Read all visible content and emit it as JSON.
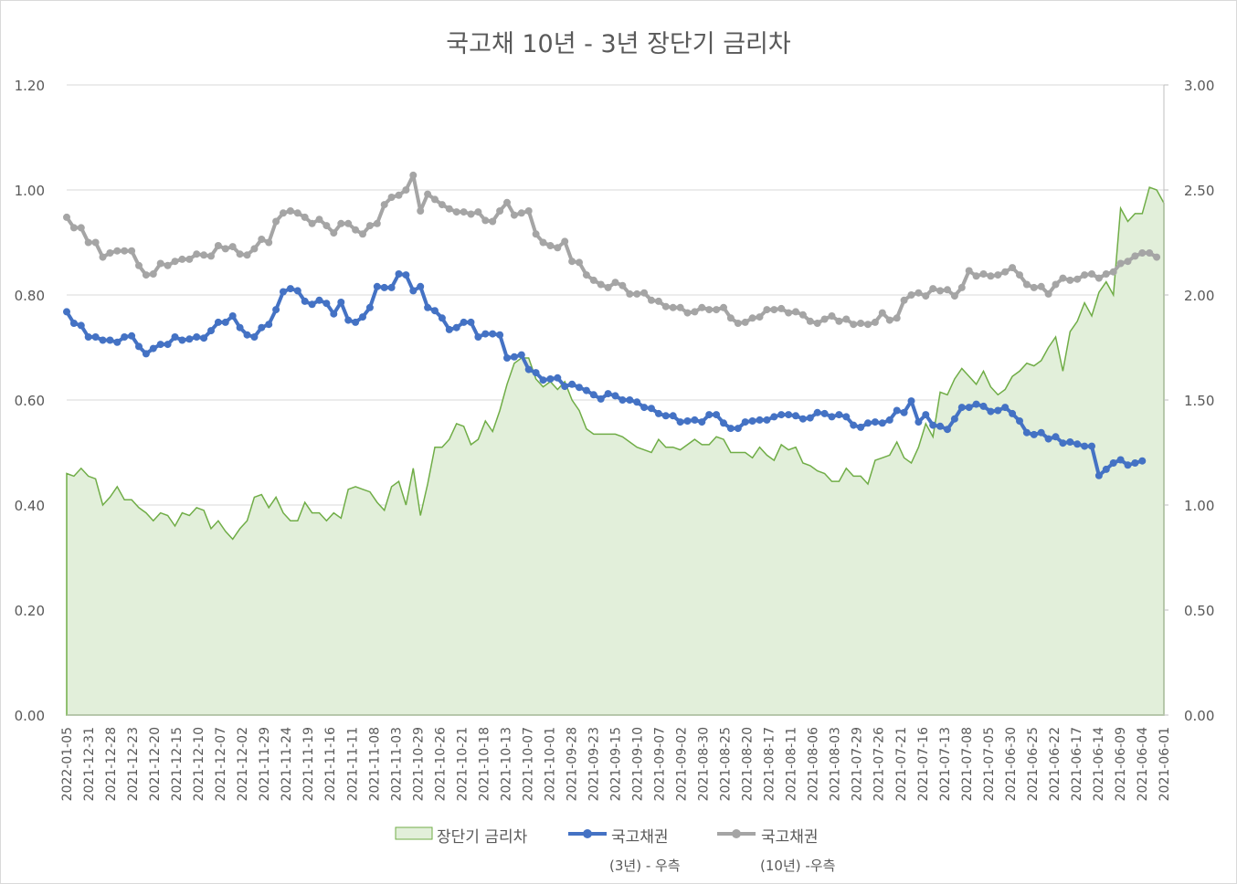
{
  "chart_data": {
    "type": "line",
    "title": "국고채 10년 - 3년 장단기 금리차",
    "left_axis": {
      "min": 0,
      "max": 1.2,
      "ticks": [
        "0.00",
        "0.20",
        "0.40",
        "0.60",
        "0.80",
        "1.00",
        "1.20"
      ]
    },
    "right_axis": {
      "min": 0,
      "max": 3,
      "ticks": [
        "0.00",
        "0.50",
        "1.00",
        "1.50",
        "2.00",
        "2.50",
        "3.00"
      ]
    },
    "x_tick_labels": [
      "2022-01-05",
      "2021-12-31",
      "2021-12-28",
      "2021-12-23",
      "2021-12-20",
      "2021-12-15",
      "2021-12-10",
      "2021-12-07",
      "2021-12-02",
      "2021-11-29",
      "2021-11-24",
      "2021-11-19",
      "2021-11-16",
      "2021-11-11",
      "2021-11-08",
      "2021-11-03",
      "2021-10-29",
      "2021-10-26",
      "2021-10-21",
      "2021-10-18",
      "2021-10-13",
      "2021-10-07",
      "2021-10-01",
      "2021-09-28",
      "2021-09-23",
      "2021-09-15",
      "2021-09-10",
      "2021-09-07",
      "2021-09-02",
      "2021-08-30",
      "2021-08-25",
      "2021-08-20",
      "2021-08-17",
      "2021-08-11",
      "2021-08-06",
      "2021-08-03",
      "2021-07-29",
      "2021-07-26",
      "2021-07-21",
      "2021-07-16",
      "2021-07-13",
      "2021-07-08",
      "2021-07-05",
      "2021-06-30",
      "2021-06-25",
      "2021-06-22",
      "2021-06-17",
      "2021-06-14",
      "2021-06-09",
      "2021-06-04",
      "2021-06-01"
    ],
    "grid": "horizontal",
    "legend_position": "bottom",
    "series": [
      {
        "name": "장단기 금리차",
        "type": "area",
        "axis": "left",
        "color": "#70ad47",
        "fill": "#e2efda",
        "values": [
          0.46,
          0.455,
          0.47,
          0.455,
          0.45,
          0.4,
          0.415,
          0.435,
          0.41,
          0.41,
          0.395,
          0.385,
          0.37,
          0.385,
          0.38,
          0.36,
          0.385,
          0.38,
          0.395,
          0.39,
          0.355,
          0.37,
          0.35,
          0.335,
          0.355,
          0.37,
          0.415,
          0.42,
          0.395,
          0.415,
          0.385,
          0.37,
          0.37,
          0.405,
          0.385,
          0.385,
          0.37,
          0.385,
          0.375,
          0.43,
          0.435,
          0.43,
          0.425,
          0.405,
          0.39,
          0.435,
          0.445,
          0.4,
          0.47,
          0.38,
          0.44,
          0.51,
          0.51,
          0.525,
          0.555,
          0.55,
          0.515,
          0.525,
          0.56,
          0.54,
          0.58,
          0.63,
          0.67,
          0.68,
          0.68,
          0.64,
          0.625,
          0.635,
          0.62,
          0.635,
          0.6,
          0.58,
          0.545,
          0.535,
          0.535,
          0.535,
          0.535,
          0.53,
          0.52,
          0.51,
          0.505,
          0.5,
          0.525,
          0.51,
          0.51,
          0.505,
          0.515,
          0.525,
          0.515,
          0.515,
          0.53,
          0.525,
          0.5,
          0.5,
          0.5,
          0.49,
          0.51,
          0.495,
          0.485,
          0.515,
          0.505,
          0.51,
          0.48,
          0.475,
          0.465,
          0.46,
          0.445,
          0.445,
          0.47,
          0.455,
          0.455,
          0.44,
          0.485,
          0.49,
          0.495,
          0.52,
          0.49,
          0.48,
          0.51,
          0.555,
          0.53,
          0.615,
          0.61,
          0.64,
          0.66,
          0.645,
          0.63,
          0.655,
          0.625,
          0.61,
          0.62,
          0.645,
          0.655,
          0.67,
          0.665,
          0.675,
          0.7,
          0.72,
          0.655,
          0.73,
          0.75,
          0.785,
          0.76,
          0.805,
          0.825,
          0.8,
          0.965,
          0.94,
          0.955,
          0.955,
          1.005,
          1.0,
          0.975
        ]
      },
      {
        "name": "국고채권",
        "name_sub": "(3년) - 우측",
        "type": "line",
        "axis": "right",
        "color": "#4472c4",
        "values": [
          1.92,
          1.865,
          1.855,
          1.8,
          1.8,
          1.785,
          1.785,
          1.775,
          1.8,
          1.805,
          1.755,
          1.72,
          1.745,
          1.765,
          1.765,
          1.8,
          1.785,
          1.79,
          1.8,
          1.795,
          1.83,
          1.87,
          1.87,
          1.9,
          1.845,
          1.81,
          1.8,
          1.845,
          1.86,
          1.93,
          2.015,
          2.03,
          2.02,
          1.97,
          1.955,
          1.975,
          1.96,
          1.91,
          1.965,
          1.88,
          1.87,
          1.895,
          1.94,
          2.04,
          2.035,
          2.035,
          2.1,
          2.095,
          2.02,
          2.04,
          1.94,
          1.925,
          1.89,
          1.835,
          1.845,
          1.87,
          1.87,
          1.8,
          1.815,
          1.815,
          1.81,
          1.7,
          1.705,
          1.715,
          1.645,
          1.63,
          1.595,
          1.6,
          1.605,
          1.565,
          1.575,
          1.56,
          1.545,
          1.525,
          1.505,
          1.53,
          1.52,
          1.5,
          1.5,
          1.49,
          1.465,
          1.46,
          1.435,
          1.425,
          1.425,
          1.395,
          1.4,
          1.405,
          1.395,
          1.43,
          1.43,
          1.39,
          1.365,
          1.365,
          1.395,
          1.4,
          1.405,
          1.405,
          1.42,
          1.43,
          1.43,
          1.425,
          1.41,
          1.415,
          1.44,
          1.435,
          1.42,
          1.43,
          1.42,
          1.38,
          1.37,
          1.39,
          1.395,
          1.39,
          1.405,
          1.45,
          1.44,
          1.495,
          1.395,
          1.43,
          1.38,
          1.375,
          1.36,
          1.41,
          1.465,
          1.465,
          1.48,
          1.47,
          1.445,
          1.45,
          1.465,
          1.435,
          1.4,
          1.345,
          1.335,
          1.345,
          1.315,
          1.325,
          1.295,
          1.3,
          1.29,
          1.28,
          1.28,
          1.14,
          1.17,
          1.2,
          1.215,
          1.19,
          1.2,
          1.21
        ]
      },
      {
        "name": "국고채권",
        "name_sub": "(10년) -우측",
        "type": "line",
        "axis": "right",
        "color": "#a5a5a5",
        "values": [
          2.37,
          2.32,
          2.32,
          2.25,
          2.25,
          2.18,
          2.2,
          2.21,
          2.21,
          2.21,
          2.14,
          2.095,
          2.1,
          2.15,
          2.14,
          2.16,
          2.17,
          2.17,
          2.195,
          2.19,
          2.185,
          2.235,
          2.22,
          2.23,
          2.195,
          2.19,
          2.22,
          2.265,
          2.25,
          2.35,
          2.39,
          2.4,
          2.39,
          2.37,
          2.34,
          2.36,
          2.33,
          2.295,
          2.34,
          2.34,
          2.31,
          2.29,
          2.33,
          2.34,
          2.43,
          2.465,
          2.475,
          2.5,
          2.57,
          2.4,
          2.48,
          2.455,
          2.43,
          2.41,
          2.395,
          2.395,
          2.385,
          2.395,
          2.355,
          2.35,
          2.4,
          2.44,
          2.38,
          2.39,
          2.4,
          2.29,
          2.25,
          2.235,
          2.225,
          2.255,
          2.16,
          2.155,
          2.095,
          2.07,
          2.05,
          2.035,
          2.06,
          2.045,
          2.005,
          2.005,
          2.01,
          1.975,
          1.97,
          1.945,
          1.94,
          1.94,
          1.915,
          1.92,
          1.94,
          1.93,
          1.93,
          1.94,
          1.89,
          1.865,
          1.87,
          1.89,
          1.895,
          1.93,
          1.93,
          1.935,
          1.915,
          1.92,
          1.905,
          1.875,
          1.865,
          1.885,
          1.9,
          1.875,
          1.885,
          1.86,
          1.865,
          1.86,
          1.87,
          1.915,
          1.88,
          1.89,
          1.975,
          2.0,
          2.01,
          1.995,
          2.03,
          2.02,
          2.025,
          1.995,
          2.035,
          2.115,
          2.09,
          2.1,
          2.09,
          2.095,
          2.11,
          2.13,
          2.095,
          2.05,
          2.035,
          2.04,
          2.005,
          2.05,
          2.08,
          2.07,
          2.075,
          2.095,
          2.1,
          2.08,
          2.1,
          2.11,
          2.15,
          2.16,
          2.185,
          2.2,
          2.2,
          2.18
        ]
      }
    ]
  }
}
